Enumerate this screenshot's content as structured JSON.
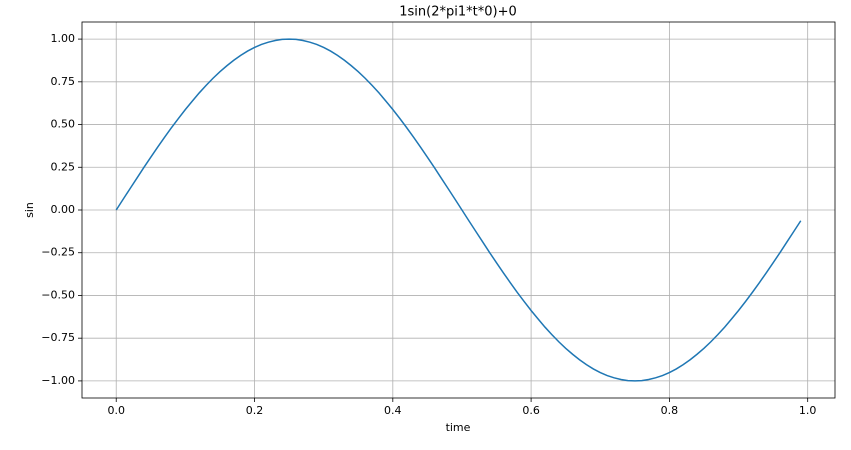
{
  "chart_data": {
    "type": "line",
    "title": "1sin(2*pi1*t*0)+0",
    "x_label": "time",
    "y_label": "sin",
    "x": [
      0,
      0.01,
      0.02,
      0.03,
      0.04,
      0.05,
      0.06,
      0.07,
      0.08,
      0.09,
      0.1,
      0.11,
      0.12,
      0.13,
      0.14,
      0.15,
      0.16,
      0.17,
      0.18,
      0.19,
      0.2,
      0.21,
      0.22,
      0.23,
      0.24,
      0.25,
      0.26,
      0.27,
      0.28,
      0.29,
      0.3,
      0.31,
      0.32,
      0.33,
      0.34,
      0.35,
      0.36,
      0.37,
      0.38,
      0.39,
      0.4,
      0.41,
      0.42,
      0.43,
      0.44,
      0.45,
      0.46,
      0.47,
      0.48,
      0.49,
      0.5,
      0.51,
      0.52,
      0.53,
      0.54,
      0.55,
      0.56,
      0.57,
      0.58,
      0.59,
      0.6,
      0.61,
      0.62,
      0.63,
      0.64,
      0.65,
      0.66,
      0.67,
      0.68,
      0.69,
      0.7,
      0.71,
      0.72,
      0.73,
      0.74,
      0.75,
      0.76,
      0.77,
      0.78,
      0.79,
      0.8,
      0.81,
      0.82,
      0.83,
      0.84,
      0.85,
      0.86,
      0.87,
      0.88,
      0.89,
      0.9,
      0.91,
      0.92,
      0.93,
      0.94,
      0.95,
      0.96,
      0.97,
      0.98,
      0.99
    ],
    "values": [
      0,
      0.063,
      0.125,
      0.187,
      0.249,
      0.309,
      0.368,
      0.426,
      0.482,
      0.536,
      0.588,
      0.637,
      0.685,
      0.729,
      0.771,
      0.809,
      0.844,
      0.876,
      0.905,
      0.93,
      0.951,
      0.969,
      0.982,
      0.992,
      0.998,
      1,
      0.998,
      0.992,
      0.982,
      0.969,
      0.951,
      0.93,
      0.905,
      0.876,
      0.844,
      0.809,
      0.771,
      0.729,
      0.685,
      0.637,
      0.588,
      0.536,
      0.482,
      0.426,
      0.368,
      0.309,
      0.249,
      0.187,
      0.125,
      0.063,
      0,
      -0.063,
      -0.125,
      -0.187,
      -0.249,
      -0.309,
      -0.368,
      -0.426,
      -0.482,
      -0.536,
      -0.588,
      -0.637,
      -0.685,
      -0.729,
      -0.771,
      -0.809,
      -0.844,
      -0.876,
      -0.905,
      -0.93,
      -0.951,
      -0.969,
      -0.982,
      -0.992,
      -0.998,
      -1,
      -0.998,
      -0.992,
      -0.982,
      -0.969,
      -0.951,
      -0.93,
      -0.905,
      -0.876,
      -0.844,
      -0.809,
      -0.771,
      -0.729,
      -0.685,
      -0.637,
      -0.588,
      -0.536,
      -0.482,
      -0.426,
      -0.368,
      -0.309,
      -0.249,
      -0.187,
      -0.125,
      -0.063
    ],
    "color": "#1f77b4",
    "xlim": [
      -0.0495,
      1.0395
    ],
    "xticks": [
      {
        "value": 0,
        "label": "0.0"
      },
      0.2,
      0.4,
      0.6,
      0.8,
      {
        "value": 1,
        "label": "1.0"
      }
    ],
    "ylim": [
      -1.1,
      1.1
    ],
    "yticks": [
      {
        "value": -1,
        "label": "−1.00"
      },
      {
        "value": -0.75,
        "label": "−0.75"
      },
      {
        "value": -0.5,
        "label": "−0.50"
      },
      {
        "value": -0.25,
        "label": "−0.25"
      },
      {
        "value": 0,
        "label": "0.00"
      },
      {
        "value": 0.25,
        "label": "0.25"
      },
      {
        "value": 0.5,
        "label": "0.50"
      },
      {
        "value": 0.75,
        "label": "0.75"
      },
      {
        "value": 1,
        "label": "1.00"
      }
    ],
    "grid": true
  }
}
